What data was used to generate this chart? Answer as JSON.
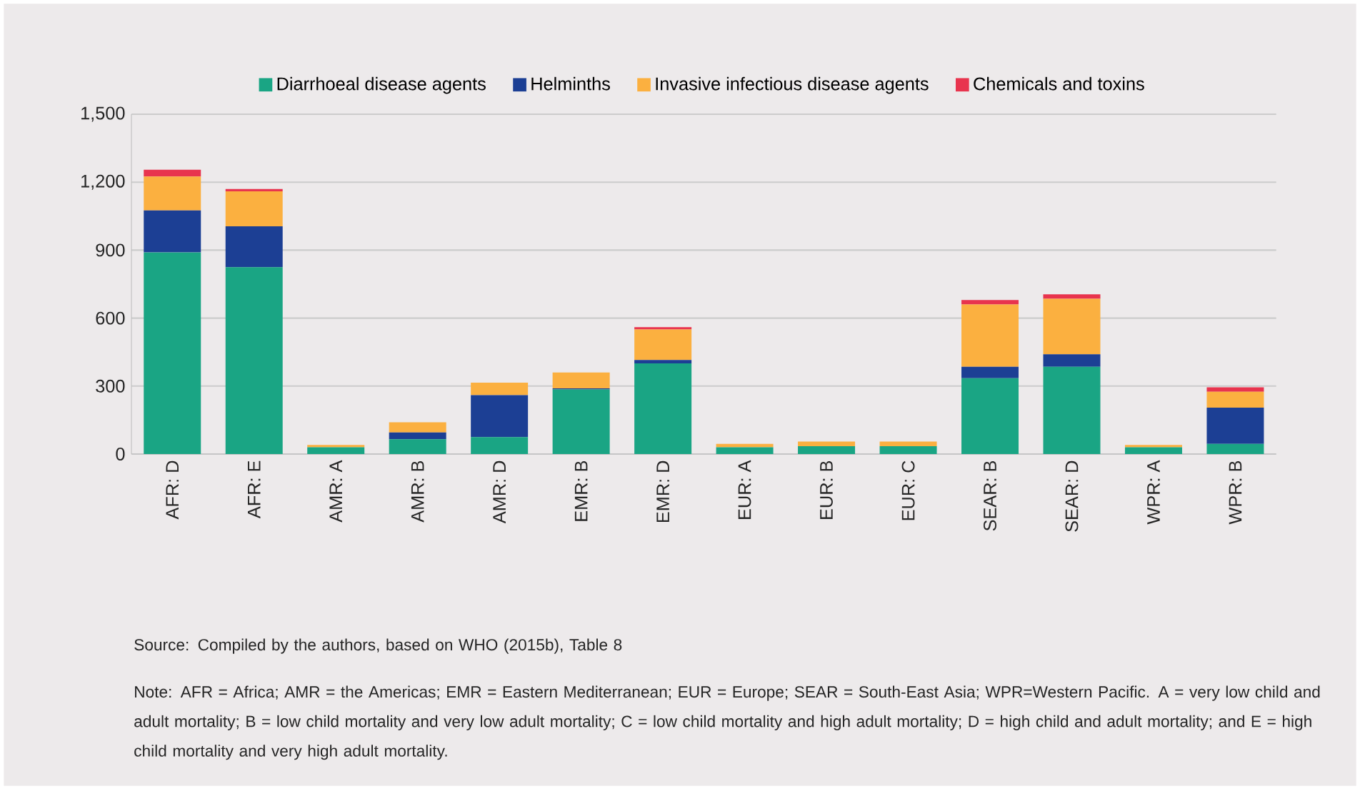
{
  "chart_data": {
    "type": "bar",
    "stacked": true,
    "categories": [
      "AFR: D",
      "AFR: E",
      "AMR: A",
      "AMR: B",
      "AMR: D",
      "EMR: B",
      "EMR: D",
      "EUR: A",
      "EUR: B",
      "EUR: C",
      "SEAR: B",
      "SEAR: D",
      "WPR: A",
      "WPR: B"
    ],
    "series": [
      {
        "name": "Diarrhoeal disease agents",
        "color": "#1aa584",
        "values": [
          890,
          825,
          30,
          65,
          75,
          285,
          400,
          30,
          35,
          35,
          335,
          385,
          30,
          45
        ]
      },
      {
        "name": "Helminths",
        "color": "#1c3f94",
        "values": [
          185,
          180,
          0,
          30,
          185,
          5,
          15,
          0,
          0,
          0,
          50,
          55,
          0,
          160
        ]
      },
      {
        "name": "Invasive infectious disease agents",
        "color": "#fbb040",
        "values": [
          150,
          155,
          10,
          45,
          55,
          70,
          135,
          15,
          20,
          20,
          275,
          245,
          10,
          70
        ]
      },
      {
        "name": "Chemicals and toxins",
        "color": "#e8344e",
        "values": [
          30,
          10,
          0,
          0,
          0,
          0,
          10,
          0,
          0,
          0,
          20,
          20,
          0,
          20
        ]
      }
    ],
    "ylim": [
      0,
      1500
    ],
    "yticks": [
      0,
      300,
      600,
      900,
      {
        "value": 1200,
        "label": "1,200"
      },
      {
        "value": 1500,
        "label": "1,500"
      }
    ],
    "grid": "y",
    "legend": "top",
    "annotations": [
      "Source: Compiled by the authors, based on WHO (2015b), Table 8",
      "Note: AFR = Africa; AMR = the Americas; EMR = Eastern Mediterranean; EUR = Europe; SEAR = South-East Asia; WPR=Western Pacific. A = very low child and adult mortality; B = low child mortality and very low adult mortality; C = low child mortality and high adult mortality; D = high child and adult mortality; and E = high child mortality and very high adult mortality."
    ]
  }
}
